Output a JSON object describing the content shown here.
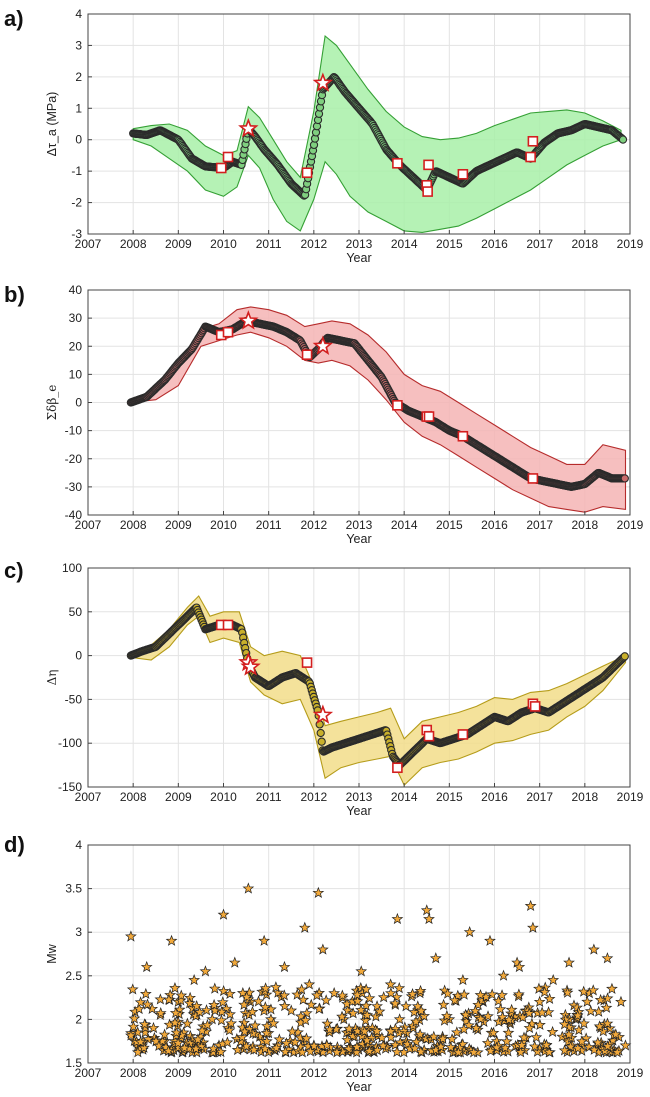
{
  "panel_labels": [
    "a)",
    "b)",
    "c)",
    "d)"
  ],
  "colors": {
    "a_band": "#a8f0a8",
    "a_band_edge": "#35a035",
    "a_dot": "#7fcf7f",
    "b_band": "#f4b4b4",
    "b_band_edge": "#b62c2c",
    "b_dot": "#c96b6b",
    "c_band": "#f2dd8a",
    "c_band_edge": "#b59c1a",
    "c_dot": "#c9b02b",
    "d_star": "#f2a93b",
    "marker_red": "#d31f1f",
    "dot_edge": "#2b2b2b"
  },
  "chart_data": [
    {
      "type": "line",
      "panel": "a)",
      "xlabel": "Year",
      "ylabel": "Δτ_a (MPa)",
      "xlim": [
        2007,
        2019
      ],
      "ylim": [
        -3,
        4
      ],
      "xticks": [
        "2007",
        "2008",
        "2009",
        "2010",
        "2011",
        "2012",
        "2013",
        "2014",
        "2015",
        "2016",
        "2017",
        "2018",
        "2019"
      ],
      "yticks": [
        "-3",
        "-2",
        "-1",
        "0",
        "1",
        "2",
        "3",
        "4"
      ],
      "grid": true,
      "series": [
        {
          "role": "mean",
          "x": [
            2008.0,
            2008.3,
            2008.6,
            2009.0,
            2009.3,
            2009.6,
            2010.0,
            2010.2,
            2010.4,
            2010.55,
            2010.7,
            2010.9,
            2011.2,
            2011.5,
            2011.8,
            2012.0,
            2012.2,
            2012.45,
            2012.7,
            2013.0,
            2013.3,
            2013.6,
            2013.9,
            2014.2,
            2014.5,
            2014.7,
            2015.0,
            2015.3,
            2015.6,
            2015.9,
            2016.2,
            2016.5,
            2016.8,
            2017.1,
            2017.4,
            2017.7,
            2018.0,
            2018.3,
            2018.6,
            2018.85
          ],
          "y": [
            0.2,
            0.15,
            0.3,
            0.0,
            -0.6,
            -0.85,
            -0.9,
            -0.7,
            -0.8,
            0.35,
            0.1,
            -0.3,
            -0.8,
            -1.4,
            -1.8,
            -0.2,
            1.6,
            2.0,
            1.5,
            1.0,
            0.5,
            -0.3,
            -0.8,
            -1.2,
            -1.6,
            -1.0,
            -1.2,
            -1.4,
            -1.0,
            -0.8,
            -0.6,
            -0.4,
            -0.6,
            -0.1,
            0.2,
            0.3,
            0.5,
            0.4,
            0.3,
            0.0
          ]
        },
        {
          "role": "upper",
          "x": [
            2008.0,
            2008.4,
            2008.8,
            2009.2,
            2009.6,
            2010.0,
            2010.3,
            2010.55,
            2010.8,
            2011.1,
            2011.4,
            2011.7,
            2012.0,
            2012.25,
            2012.5,
            2012.8,
            2013.2,
            2013.6,
            2014.0,
            2014.4,
            2014.8,
            2015.2,
            2015.6,
            2016.0,
            2016.4,
            2016.8,
            2017.2,
            2017.6,
            2018.0,
            2018.4,
            2018.8
          ],
          "y": [
            0.35,
            0.45,
            0.5,
            0.3,
            -0.2,
            -0.5,
            -0.35,
            1.05,
            0.7,
            0.0,
            -0.7,
            -1.2,
            0.9,
            3.3,
            3.0,
            2.4,
            1.6,
            0.9,
            0.4,
            0.1,
            0.0,
            0.05,
            0.2,
            0.45,
            0.65,
            0.85,
            0.9,
            0.95,
            0.85,
            0.6,
            0.3
          ]
        },
        {
          "role": "lower",
          "x": [
            2008.0,
            2008.4,
            2008.8,
            2009.2,
            2009.6,
            2010.0,
            2010.3,
            2010.55,
            2010.8,
            2011.1,
            2011.4,
            2011.7,
            2012.0,
            2012.25,
            2012.5,
            2012.8,
            2013.2,
            2013.6,
            2014.0,
            2014.4,
            2014.8,
            2015.2,
            2015.6,
            2016.0,
            2016.4,
            2016.8,
            2017.2,
            2017.6,
            2018.0,
            2018.4,
            2018.8
          ],
          "y": [
            0.0,
            -0.2,
            -0.6,
            -1.0,
            -1.6,
            -1.8,
            -1.5,
            -0.5,
            -0.9,
            -1.9,
            -2.6,
            -2.9,
            -1.9,
            -0.7,
            -1.1,
            -1.8,
            -2.3,
            -2.6,
            -2.9,
            -2.95,
            -2.85,
            -2.75,
            -2.5,
            -2.2,
            -1.9,
            -1.6,
            -1.2,
            -0.8,
            -0.5,
            -0.2,
            0.0
          ]
        }
      ],
      "square_markers": {
        "x": [
          2009.95,
          2010.1,
          2011.85,
          2013.85,
          2014.5,
          2014.52,
          2014.54,
          2015.3,
          2016.8,
          2016.85
        ],
        "y": [
          -0.9,
          -0.55,
          -1.05,
          -0.75,
          -1.45,
          -1.65,
          -0.8,
          -1.1,
          -0.55,
          -0.05
        ]
      },
      "star_markers": {
        "x": [
          2010.55,
          2012.2
        ],
        "y": [
          0.35,
          1.8
        ]
      }
    },
    {
      "type": "line",
      "panel": "b)",
      "xlabel": "Year",
      "ylabel": "Σδβ_e",
      "xlim": [
        2007,
        2019
      ],
      "ylim": [
        -40,
        40
      ],
      "xticks": [
        "2007",
        "2008",
        "2009",
        "2010",
        "2011",
        "2012",
        "2013",
        "2014",
        "2015",
        "2016",
        "2017",
        "2018",
        "2019"
      ],
      "yticks": [
        "-40",
        "-30",
        "-20",
        "-10",
        "0",
        "10",
        "20",
        "30",
        "40"
      ],
      "grid": true,
      "series": [
        {
          "role": "mean",
          "x": [
            2007.95,
            2008.3,
            2008.7,
            2009.0,
            2009.3,
            2009.6,
            2009.9,
            2010.2,
            2010.5,
            2010.8,
            2011.1,
            2011.4,
            2011.7,
            2011.9,
            2012.1,
            2012.3,
            2012.6,
            2012.9,
            2013.2,
            2013.5,
            2013.8,
            2014.1,
            2014.4,
            2014.7,
            2015.0,
            2015.3,
            2015.6,
            2015.9,
            2016.2,
            2016.5,
            2016.8,
            2017.1,
            2017.4,
            2017.7,
            2018.0,
            2018.3,
            2018.6,
            2018.9
          ],
          "y": [
            0,
            2,
            8,
            14,
            19,
            27,
            25,
            26,
            29,
            28,
            27,
            25,
            22,
            16,
            19,
            23,
            22,
            21,
            15,
            9,
            0,
            -3,
            -5,
            -7,
            -10,
            -12,
            -15,
            -18,
            -21,
            -24,
            -27,
            -28,
            -29,
            -30,
            -29,
            -25,
            -27,
            -27
          ]
        },
        {
          "role": "upper",
          "x": [
            2007.95,
            2008.5,
            2009.0,
            2009.5,
            2009.9,
            2010.3,
            2010.6,
            2011.0,
            2011.4,
            2011.8,
            2012.1,
            2012.4,
            2012.8,
            2013.2,
            2013.6,
            2014.0,
            2014.4,
            2014.8,
            2015.2,
            2015.6,
            2016.0,
            2016.4,
            2016.8,
            2017.2,
            2017.6,
            2018.0,
            2018.4,
            2018.9
          ],
          "y": [
            0,
            4,
            14,
            26,
            28,
            33,
            34,
            33,
            31,
            27,
            28,
            29,
            28,
            24,
            18,
            10,
            6,
            4,
            0,
            -4,
            -8,
            -12,
            -16,
            -19,
            -22,
            -22,
            -15,
            -17
          ]
        },
        {
          "role": "lower",
          "x": [
            2007.95,
            2008.5,
            2009.0,
            2009.5,
            2009.9,
            2010.3,
            2010.6,
            2011.0,
            2011.4,
            2011.8,
            2012.1,
            2012.4,
            2012.8,
            2013.2,
            2013.6,
            2014.0,
            2014.4,
            2014.8,
            2015.2,
            2015.6,
            2016.0,
            2016.4,
            2016.8,
            2017.2,
            2017.6,
            2018.0,
            2018.4,
            2018.9
          ],
          "y": [
            0,
            1,
            6,
            20,
            22,
            24,
            25,
            23,
            20,
            15,
            14,
            15,
            13,
            8,
            1,
            -7,
            -12,
            -15,
            -19,
            -23,
            -27,
            -31,
            -34,
            -37,
            -38,
            -39,
            -37,
            -38
          ]
        }
      ],
      "square_markers": {
        "x": [
          2009.95,
          2010.1,
          2011.85,
          2013.85,
          2014.5,
          2014.55,
          2015.3,
          2016.85
        ],
        "y": [
          24,
          25,
          17,
          -1,
          -5,
          -5,
          -12,
          -27
        ]
      },
      "star_markers": {
        "x": [
          2010.55,
          2012.2
        ],
        "y": [
          29,
          20
        ]
      }
    },
    {
      "type": "line",
      "panel": "c)",
      "xlabel": "Year",
      "ylabel": "Δη",
      "xlim": [
        2007,
        2019
      ],
      "ylim": [
        -150,
        100
      ],
      "xticks": [
        "2007",
        "2008",
        "2009",
        "2010",
        "2011",
        "2012",
        "2013",
        "2014",
        "2015",
        "2016",
        "2017",
        "2018",
        "2019"
      ],
      "yticks": [
        "-150",
        "-100",
        "-50",
        "0",
        "50",
        "100"
      ],
      "grid": true,
      "series": [
        {
          "role": "mean",
          "x": [
            2007.95,
            2008.2,
            2008.5,
            2008.8,
            2009.1,
            2009.4,
            2009.6,
            2009.9,
            2010.2,
            2010.4,
            2010.55,
            2010.7,
            2011.0,
            2011.3,
            2011.6,
            2011.9,
            2012.1,
            2012.2,
            2012.4,
            2012.7,
            2013.0,
            2013.3,
            2013.6,
            2013.75,
            2013.9,
            2014.2,
            2014.5,
            2014.8,
            2015.1,
            2015.4,
            2015.7,
            2016.0,
            2016.3,
            2016.6,
            2016.9,
            2017.2,
            2017.5,
            2017.8,
            2018.1,
            2018.4,
            2018.7,
            2018.9
          ],
          "y": [
            0,
            5,
            10,
            25,
            40,
            55,
            30,
            35,
            35,
            30,
            -10,
            -25,
            -35,
            -25,
            -20,
            -30,
            -65,
            -110,
            -105,
            -100,
            -95,
            -90,
            -85,
            -115,
            -125,
            -110,
            -95,
            -100,
            -95,
            -90,
            -80,
            -70,
            -75,
            -65,
            -60,
            -65,
            -55,
            -45,
            -35,
            -25,
            -10,
            0
          ]
        },
        {
          "role": "upper",
          "x": [
            2007.95,
            2008.4,
            2008.8,
            2009.2,
            2009.45,
            2009.7,
            2010.0,
            2010.35,
            2010.6,
            2010.9,
            2011.3,
            2011.7,
            2012.0,
            2012.25,
            2012.6,
            2013.0,
            2013.4,
            2013.7,
            2014.0,
            2014.4,
            2014.8,
            2015.2,
            2015.6,
            2016.0,
            2016.4,
            2016.8,
            2017.2,
            2017.6,
            2018.0,
            2018.4,
            2018.9
          ],
          "y": [
            2,
            12,
            30,
            55,
            68,
            45,
            50,
            50,
            10,
            0,
            5,
            0,
            -35,
            -80,
            -75,
            -70,
            -65,
            -60,
            -95,
            -75,
            -70,
            -65,
            -58,
            -48,
            -50,
            -42,
            -40,
            -32,
            -22,
            -12,
            0
          ]
        },
        {
          "role": "lower",
          "x": [
            2007.95,
            2008.4,
            2008.8,
            2009.2,
            2009.45,
            2009.7,
            2010.0,
            2010.35,
            2010.6,
            2010.9,
            2011.3,
            2011.7,
            2012.0,
            2012.25,
            2012.6,
            2013.0,
            2013.4,
            2013.7,
            2014.0,
            2014.4,
            2014.8,
            2015.2,
            2015.6,
            2016.0,
            2016.4,
            2016.8,
            2017.2,
            2017.6,
            2018.0,
            2018.4,
            2018.9
          ],
          "y": [
            -2,
            -5,
            10,
            35,
            45,
            15,
            20,
            15,
            -30,
            -45,
            -55,
            -50,
            -85,
            -140,
            -128,
            -122,
            -118,
            -115,
            -148,
            -128,
            -122,
            -118,
            -110,
            -100,
            -97,
            -90,
            -85,
            -70,
            -58,
            -40,
            -8
          ]
        }
      ],
      "square_markers": {
        "x": [
          2009.95,
          2010.1,
          2011.85,
          2013.85,
          2014.5,
          2014.55,
          2015.3,
          2016.85,
          2016.9
        ],
        "y": [
          35,
          35,
          -8,
          -128,
          -85,
          -92,
          -90,
          -55,
          -58
        ]
      },
      "star_markers": {
        "x": [
          2010.55,
          2010.6,
          2012.2
        ],
        "y": [
          -8,
          -13,
          -68
        ]
      }
    },
    {
      "type": "scatter",
      "panel": "d)",
      "xlabel": "Year",
      "ylabel": "Mw",
      "xlim": [
        2007,
        2019
      ],
      "ylim": [
        1.5,
        4
      ],
      "xticks": [
        "2007",
        "2008",
        "2009",
        "2010",
        "2011",
        "2012",
        "2013",
        "2014",
        "2015",
        "2016",
        "2017",
        "2018",
        "2019"
      ],
      "yticks": [
        "1.5",
        "2",
        "2.5",
        "3",
        "3.5",
        "4"
      ],
      "grid": true,
      "x": [
        2007.95,
        2008.1,
        2008.2,
        2008.3,
        2008.45,
        2008.6,
        2008.7,
        2008.85,
        2009.0,
        2009.1,
        2009.2,
        2009.35,
        2009.5,
        2009.6,
        2009.75,
        2009.9,
        2010.0,
        2010.1,
        2010.25,
        2010.4,
        2010.55,
        2010.6,
        2010.8,
        2010.9,
        2011.05,
        2011.2,
        2011.35,
        2011.5,
        2011.65,
        2011.8,
        2011.9,
        2012.0,
        2012.1,
        2012.2,
        2012.3,
        2012.45,
        2012.6,
        2012.75,
        2012.9,
        2013.05,
        2013.2,
        2013.4,
        2013.55,
        2013.7,
        2013.85,
        2013.9,
        2014.05,
        2014.2,
        2014.35,
        2014.5,
        2014.55,
        2014.7,
        2014.85,
        2015.0,
        2015.15,
        2015.3,
        2015.45,
        2015.6,
        2015.75,
        2015.9,
        2016.05,
        2016.2,
        2016.35,
        2016.5,
        2016.55,
        2016.7,
        2016.8,
        2016.85,
        2017.0,
        2017.15,
        2017.3,
        2017.5,
        2017.65,
        2017.8,
        2017.95,
        2018.1,
        2018.2,
        2018.35,
        2018.5,
        2018.65,
        2018.8,
        2018.9
      ],
      "y": [
        2.95,
        1.85,
        1.7,
        2.6,
        1.9,
        2.05,
        1.75,
        2.9,
        2.2,
        1.65,
        1.95,
        2.45,
        1.8,
        2.55,
        2.0,
        1.7,
        3.2,
        1.9,
        2.65,
        1.75,
        3.5,
        2.2,
        1.8,
        2.9,
        2.0,
        1.7,
        2.6,
        2.1,
        1.85,
        3.05,
        2.4,
        1.7,
        3.45,
        2.8,
        1.95,
        2.3,
        1.65,
        2.1,
        1.8,
        2.55,
        1.9,
        2.15,
        1.7,
        2.4,
        3.15,
        2.0,
        1.75,
        1.9,
        2.3,
        3.25,
        3.15,
        2.7,
        1.8,
        2.0,
        1.65,
        2.45,
        3.0,
        1.9,
        2.2,
        2.9,
        1.75,
        2.5,
        1.95,
        2.65,
        2.6,
        2.1,
        3.3,
        3.05,
        2.2,
        1.7,
        2.45,
        1.8,
        2.65,
        2.0,
        1.7,
        2.3,
        2.8,
        1.9,
        2.7,
        1.65,
        2.2,
        1.7
      ]
    }
  ]
}
